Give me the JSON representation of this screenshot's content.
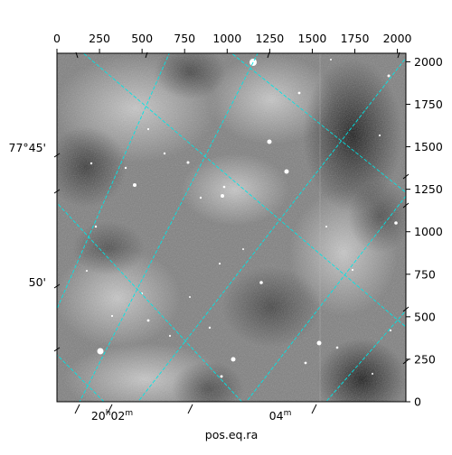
{
  "figure": {
    "bottom_axis_label": "pos.eq.ra",
    "pixel_x_ticks": [
      "0",
      "250",
      "500",
      "750",
      "1000",
      "1250",
      "1500",
      "1750",
      "2000"
    ],
    "pixel_y_ticks": [
      "0",
      "250",
      "500",
      "750",
      "1000",
      "1250",
      "1500",
      "1750",
      "2000"
    ],
    "ra_ticks": [
      {
        "main": "20",
        "sup": "h",
        "rest": "02",
        "sup2": "m"
      },
      {
        "main": "04",
        "sup": "m",
        "rest": "",
        "sup2": ""
      }
    ],
    "dec_ticks": [
      "77°45'",
      "50'"
    ],
    "grid_color": "#00e5e5",
    "image_type": "grayscale astronomical sky image with celestial coordinate grid"
  }
}
